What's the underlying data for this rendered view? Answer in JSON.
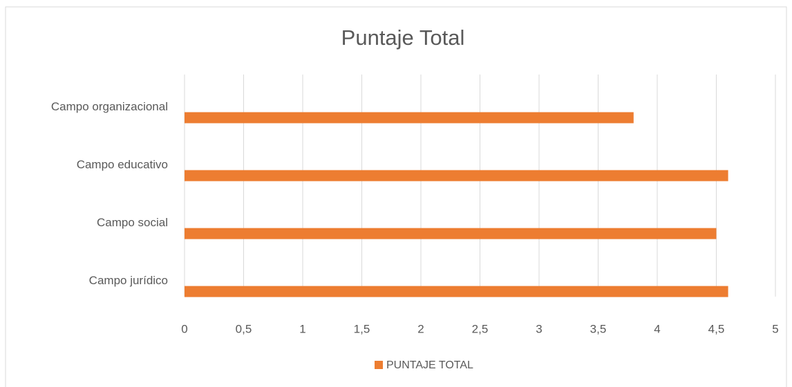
{
  "chart_data": {
    "type": "bar",
    "orientation": "horizontal",
    "title": "Puntaje Total",
    "categories": [
      "Campo organizacional",
      "Campo educativo",
      "Campo social",
      "Campo jurídico"
    ],
    "series": [
      {
        "name": "PUNTAJE TOTAL",
        "color": "#ed7d31",
        "values": [
          3.8,
          4.6,
          4.5,
          4.6
        ]
      }
    ],
    "xlim": [
      0,
      5
    ],
    "xticks": [
      0,
      {
        "value": 0.5,
        "label": "0,5"
      },
      1,
      {
        "value": 1.5,
        "label": "1,5"
      },
      2,
      {
        "value": 2.5,
        "label": "2,5"
      },
      3,
      {
        "value": 3.5,
        "label": "3,5"
      },
      4,
      {
        "value": 4.5,
        "label": "4,5"
      },
      5
    ],
    "grid": true,
    "legend": "bottom"
  }
}
